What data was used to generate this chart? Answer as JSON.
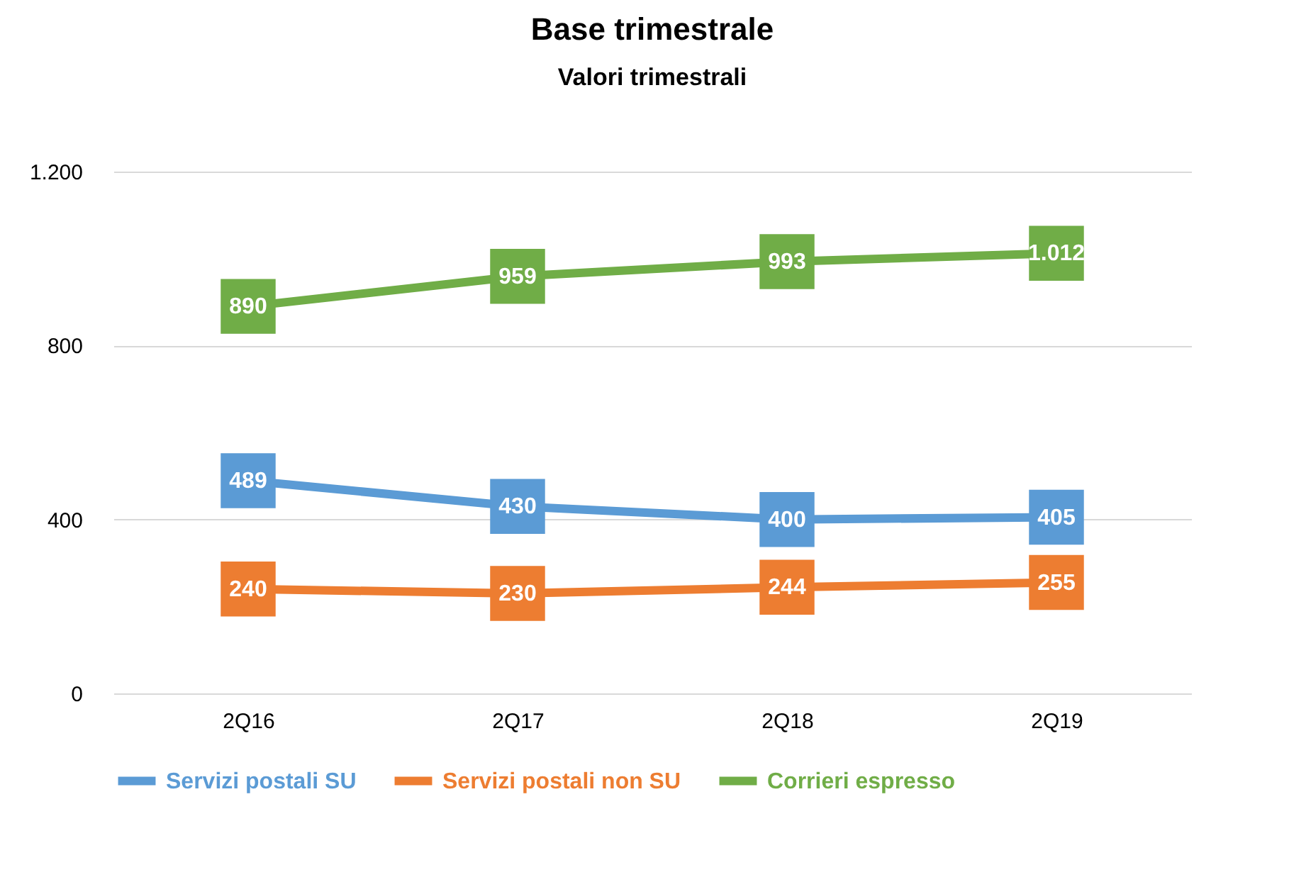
{
  "chart_data": {
    "type": "line",
    "title": "Base trimestrale",
    "subtitle": "Valori trimestrali",
    "categories": [
      "2Q16",
      "2Q17",
      "2Q18",
      "2Q19"
    ],
    "series": [
      {
        "name": "Servizi postali SU",
        "color": "#5b9bd5",
        "values": [
          489,
          430,
          400,
          405
        ],
        "value_labels": [
          "489",
          "430",
          "400",
          "405"
        ]
      },
      {
        "name": "Servizi postali non SU",
        "color": "#ed7d31",
        "values": [
          240,
          230,
          244,
          255
        ],
        "value_labels": [
          "240",
          "230",
          "244",
          "255"
        ]
      },
      {
        "name": "Corrieri espresso",
        "color": "#70ad47",
        "values": [
          890,
          959,
          993,
          1012
        ],
        "value_labels": [
          "890",
          "959",
          "993",
          "1.012"
        ]
      }
    ],
    "ylim": [
      0,
      1200
    ],
    "yticks": [
      0,
      400,
      800,
      {
        "value": 1200,
        "label": "1.200"
      }
    ],
    "grid": "y",
    "legend": "bottom",
    "marker": "square"
  }
}
